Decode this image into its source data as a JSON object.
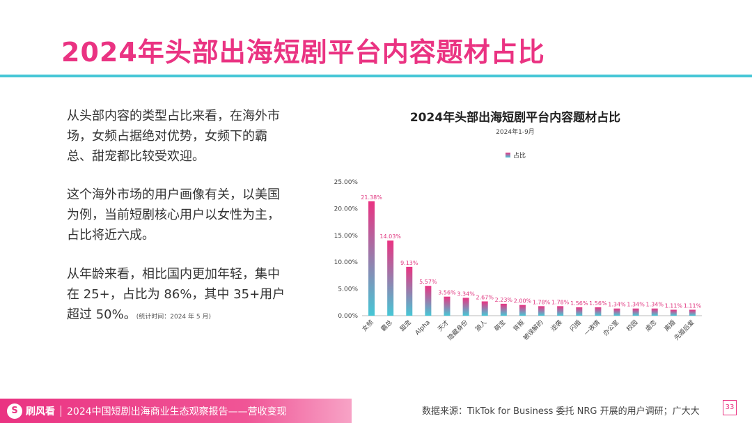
{
  "page_title": "2024年头部出海短剧平台内容题材占比",
  "paragraphs": {
    "p1": "从头部内容的类型占比来看，在海外市场，女频占据绝对优势，女频下的霸总、甜宠都比较受欢迎。",
    "p2": "这个海外市场的用户画像有关，以美国为例，当前短剧核心用户以女性为主，占比将近六成。",
    "p3": "从年龄来看，相比国内更加年轻，集中在 25+，占比为 86%，其中 35+用户超过 50%。",
    "p3_note": "(统计时间：2024 年 5 月)"
  },
  "chart_data": {
    "type": "bar",
    "title": "2024年头部出海短剧平台内容题材占比",
    "subtitle": "2024年1-9月",
    "legend": "占比",
    "legend_position": "top-center",
    "ylim": [
      0,
      25
    ],
    "yticks": [
      "0.00%",
      "5.00%",
      "10.00%",
      "15.00%",
      "20.00%",
      "25.00%"
    ],
    "grid": false,
    "categories": [
      "女频",
      "霸总",
      "甜宠",
      "Alpha",
      "天才",
      "隐藏身份",
      "狼人",
      "萌宝",
      "背叛",
      "被误解的",
      "逆袭",
      "闪婚",
      "一夜情",
      "办公室",
      "校园",
      "虐恋",
      "离婚",
      "先婚后爱"
    ],
    "values": [
      21.38,
      14.03,
      9.13,
      5.57,
      3.56,
      3.34,
      2.67,
      2.23,
      2.0,
      1.78,
      1.78,
      1.56,
      1.56,
      1.34,
      1.34,
      1.34,
      1.11,
      1.11
    ],
    "labels": [
      "21.38%",
      "14.03%",
      "9.13%",
      "5.57%",
      "3.56%",
      "3.34%",
      "2.67%",
      "2.23%",
      "2.00%",
      "1.78%",
      "1.78%",
      "1.56%",
      "1.56%",
      "1.34%",
      "1.34%",
      "1.34%",
      "1.11%",
      "1.11%"
    ],
    "colors": {
      "top": "#ea3382",
      "bottom": "#46c7d6",
      "label": "#e0357f"
    }
  },
  "footer": {
    "logo_mark": "S",
    "logo_text": "刷风看",
    "report": "2024中国短剧出海商业生态观察报告——营收变现",
    "source": "数据来源：TikTok for Business 委托 NRG 开展的用户调研；广大大",
    "page": "33"
  },
  "colors": {
    "accent": "#ea3382",
    "rule": "#46c7d6"
  }
}
